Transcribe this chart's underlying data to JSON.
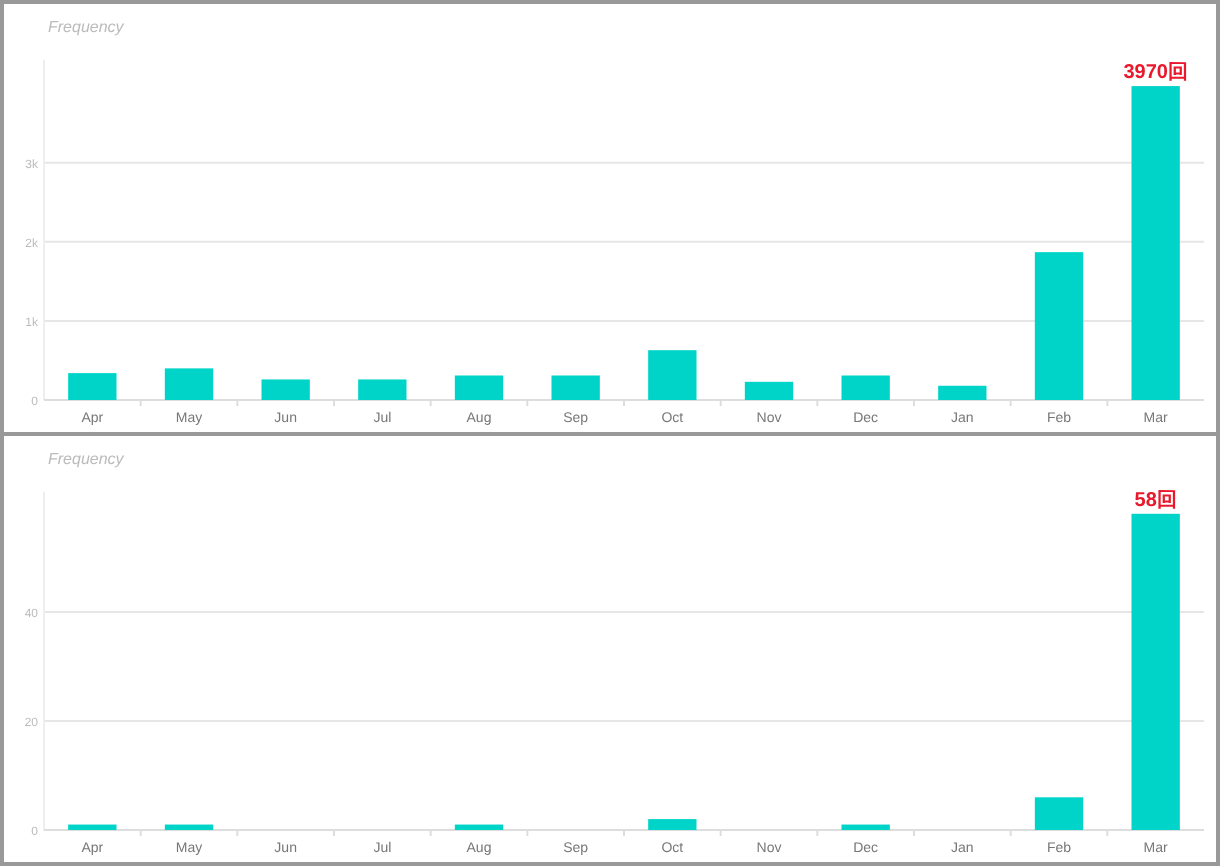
{
  "chart_data": [
    {
      "type": "bar",
      "ylabel": "Frequency",
      "categories": [
        "Apr",
        "May",
        "Jun",
        "Jul",
        "Aug",
        "Sep",
        "Oct",
        "Nov",
        "Dec",
        "Jan",
        "Feb",
        "Mar"
      ],
      "values": [
        340,
        400,
        260,
        260,
        310,
        310,
        630,
        230,
        310,
        180,
        1870,
        3970
      ],
      "color": "#00d4c8",
      "ylim": [
        0,
        4300
      ],
      "yticks": [
        0,
        {
          "value": 1000,
          "label": "1k"
        },
        {
          "value": 2000,
          "label": "2k"
        },
        {
          "value": 3000,
          "label": "3k"
        }
      ],
      "grid": "y",
      "annotations": [
        {
          "text": "3970回",
          "x": "Mar",
          "y": 3970
        }
      ]
    },
    {
      "type": "bar",
      "ylabel": "Frequency",
      "categories": [
        "Apr",
        "May",
        "Jun",
        "Jul",
        "Aug",
        "Sep",
        "Oct",
        "Nov",
        "Dec",
        "Jan",
        "Feb",
        "Mar"
      ],
      "values": [
        1,
        1,
        0,
        0,
        1,
        0,
        2,
        0,
        1,
        0,
        6,
        58
      ],
      "color": "#00d4c8",
      "ylim": [
        0,
        62
      ],
      "yticks": [
        0,
        20,
        40
      ],
      "grid": "y",
      "annotations": [
        {
          "text": "58回",
          "x": "Mar",
          "y": 58
        }
      ]
    }
  ]
}
